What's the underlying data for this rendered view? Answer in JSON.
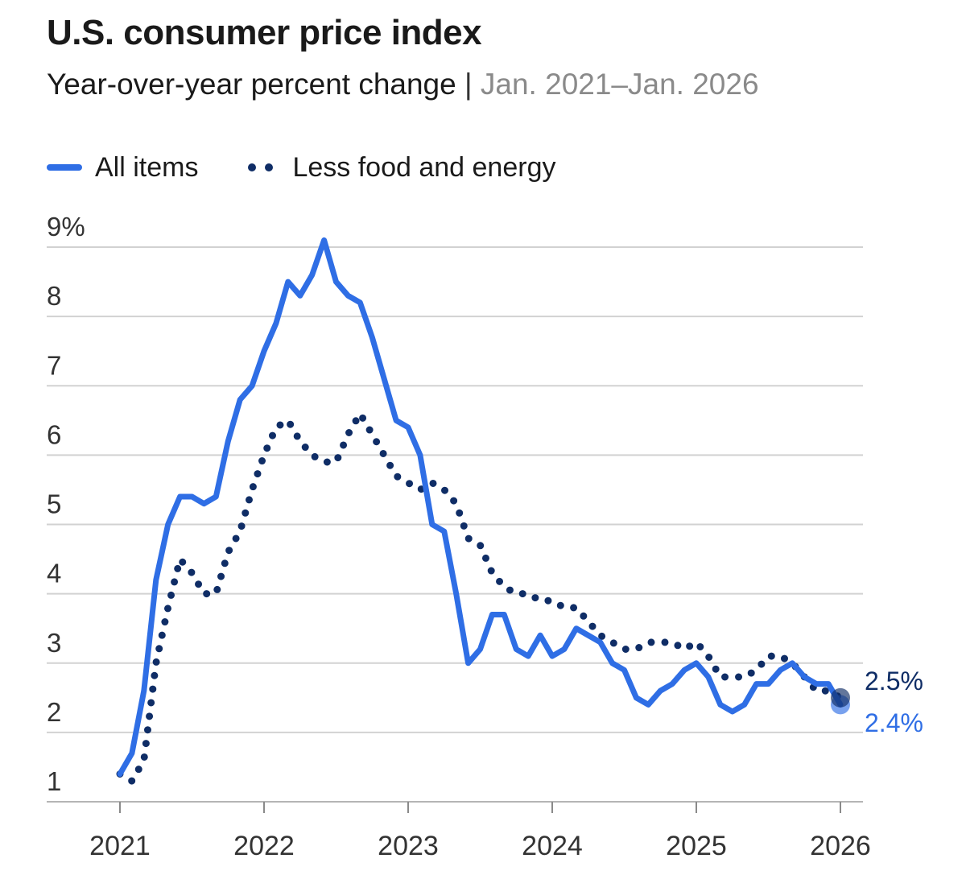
{
  "chart_data": {
    "type": "line",
    "title": "U.S. consumer price index",
    "subtitle": "Year-over-year percent change",
    "subtitle_separator": "|",
    "date_range": "Jan. 2021–Jan. 2026",
    "xlabel": "",
    "ylabel": "",
    "ylim": [
      1,
      9
    ],
    "xlim": [
      2021,
      2026
    ],
    "y_ticks": [
      {
        "value": 9,
        "label": "9%"
      },
      {
        "value": 8,
        "label": "8"
      },
      {
        "value": 7,
        "label": "7"
      },
      {
        "value": 6,
        "label": "6"
      },
      {
        "value": 5,
        "label": "5"
      },
      {
        "value": 4,
        "label": "4"
      },
      {
        "value": 3,
        "label": "3"
      },
      {
        "value": 2,
        "label": "2"
      },
      {
        "value": 1,
        "label": "1"
      }
    ],
    "x_ticks": [
      {
        "value": 2021,
        "label": "2021"
      },
      {
        "value": 2022,
        "label": "2022"
      },
      {
        "value": 2023,
        "label": "2023"
      },
      {
        "value": 2024,
        "label": "2024"
      },
      {
        "value": 2025,
        "label": "2025"
      },
      {
        "value": 2026,
        "label": "2026"
      }
    ],
    "grid": true,
    "legend_position": "top-left",
    "x_start": "2021-01",
    "x_step_months": 1,
    "series": [
      {
        "name": "All items",
        "style": "solid",
        "color": "#2f6ee5",
        "end_label": "2.4%",
        "values": [
          1.4,
          1.7,
          2.6,
          4.2,
          5.0,
          5.4,
          5.4,
          5.3,
          5.4,
          6.2,
          6.8,
          7.0,
          7.5,
          7.9,
          8.5,
          8.3,
          8.6,
          9.1,
          8.5,
          8.3,
          8.2,
          7.7,
          7.1,
          6.5,
          6.4,
          6.0,
          5.0,
          4.9,
          4.0,
          3.0,
          3.2,
          3.7,
          3.7,
          3.2,
          3.1,
          3.4,
          3.1,
          3.2,
          3.5,
          3.4,
          3.3,
          3.0,
          2.9,
          2.5,
          2.4,
          2.6,
          2.7,
          2.9,
          3.0,
          2.8,
          2.4,
          2.3,
          2.4,
          2.7,
          2.7,
          2.9,
          3.0,
          2.8,
          2.7,
          2.7,
          2.4
        ]
      },
      {
        "name": "Less food and energy",
        "style": "dotted",
        "color": "#0f2d66",
        "end_label": "2.5%",
        "values": [
          1.4,
          1.3,
          1.6,
          3.0,
          3.8,
          4.5,
          4.3,
          4.0,
          4.0,
          4.6,
          4.9,
          5.5,
          6.0,
          6.4,
          6.5,
          6.2,
          6.0,
          5.9,
          5.9,
          6.3,
          6.6,
          6.3,
          6.0,
          5.7,
          5.6,
          5.5,
          5.6,
          5.5,
          5.3,
          4.8,
          4.7,
          4.3,
          4.1,
          4.0,
          4.0,
          3.9,
          3.9,
          3.8,
          3.8,
          3.6,
          3.4,
          3.3,
          3.2,
          3.2,
          3.3,
          3.3,
          3.3,
          3.2,
          3.3,
          3.1,
          2.8,
          2.8,
          2.8,
          2.9,
          3.1,
          3.1,
          3.0,
          2.8,
          2.6,
          2.6,
          2.5
        ]
      }
    ]
  }
}
